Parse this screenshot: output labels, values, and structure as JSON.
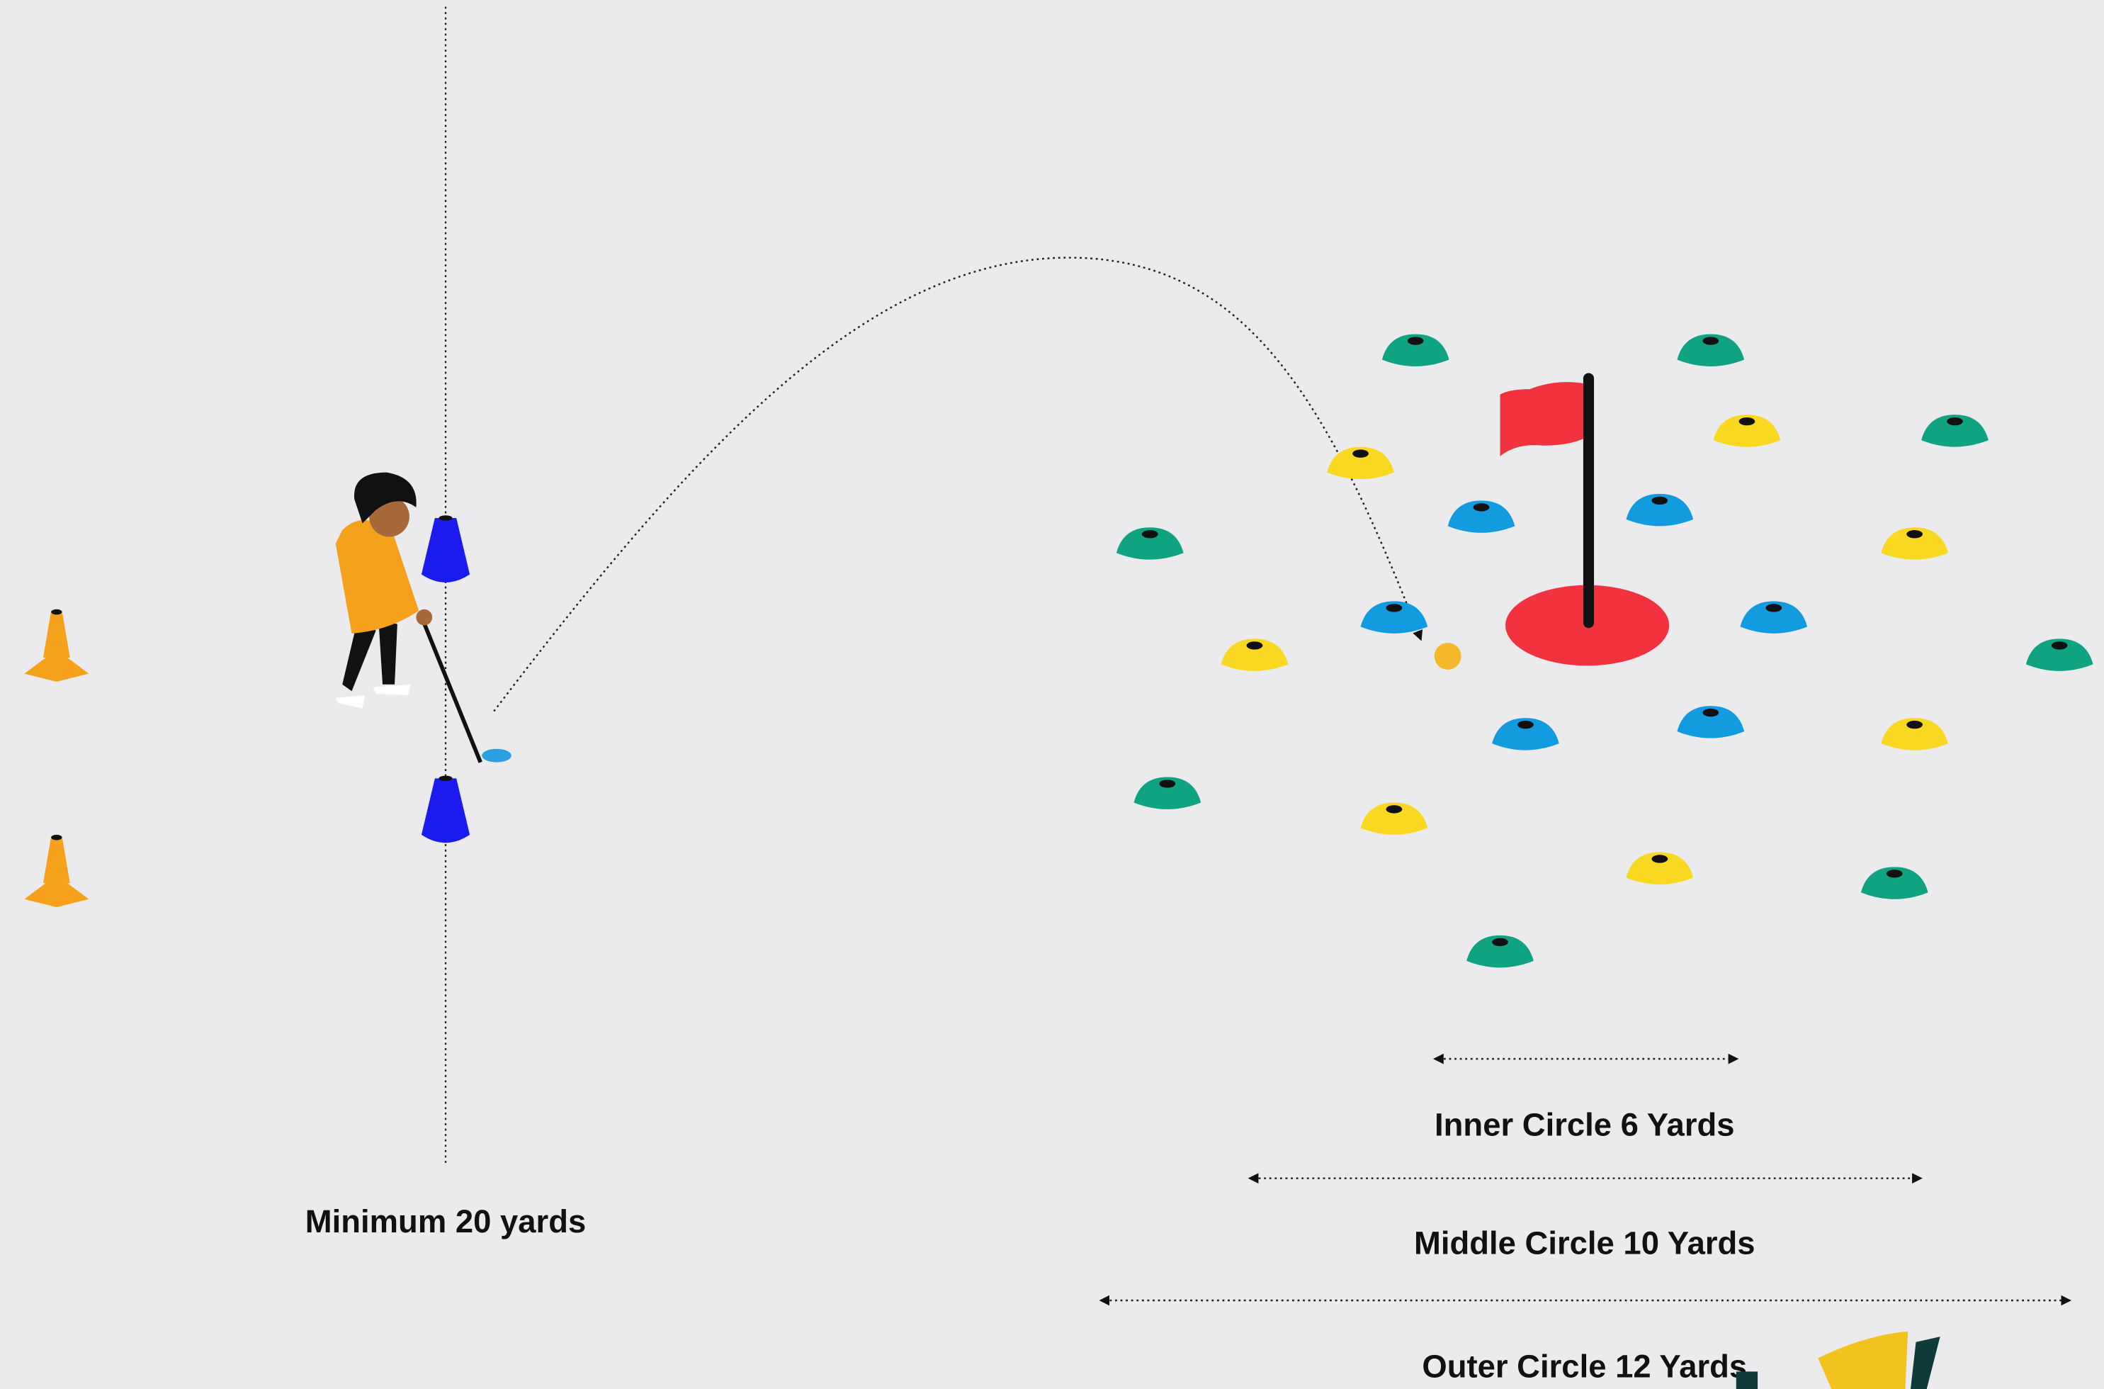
{
  "labels": {
    "minimum": "Minimum 20 yards",
    "inner": "Inner Circle 6 Yards",
    "middle": "Middle Circle 10 Yards",
    "outer": "Outer Circle 12 Yards"
  }
}
